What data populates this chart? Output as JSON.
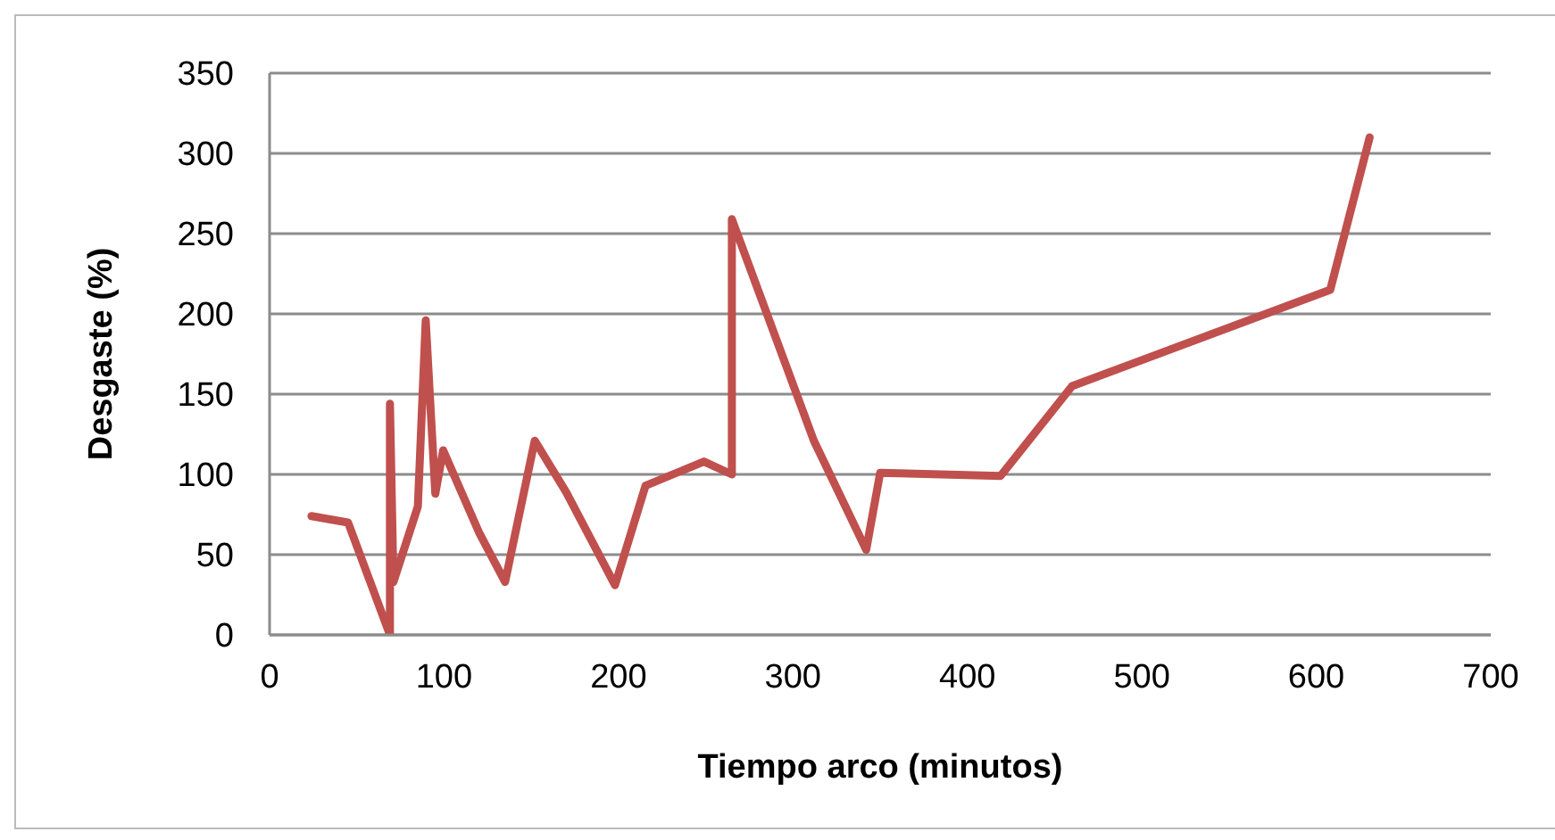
{
  "chart_data": {
    "type": "line",
    "xlabel": "Tiempo arco (minutos)",
    "ylabel": "Desgaste  (%)",
    "x": [
      24,
      45,
      69,
      69,
      71,
      85,
      89.5,
      95,
      99.5,
      120,
      135,
      152,
      170,
      198,
      215.5,
      249,
      265,
      265,
      312,
      342,
      350,
      419,
      460,
      608,
      630.6
    ],
    "series": [
      {
        "color": "#c0504d",
        "values": [
          74,
          70,
          0,
          144,
          33,
          80,
          196,
          88,
          115,
          64,
          33,
          121,
          89,
          31,
          93,
          108,
          100,
          259,
          121,
          53,
          101,
          99,
          155,
          215,
          310
        ]
      }
    ],
    "xlim": [
      0,
      700
    ],
    "xticks": [
      0,
      100,
      200,
      300,
      400,
      500,
      600,
      700
    ],
    "ylim": [
      0,
      350
    ],
    "yticks": [
      0,
      50,
      100,
      150,
      200,
      250,
      300,
      350
    ],
    "grid": "y",
    "marker": "none",
    "line_style": "solid"
  }
}
